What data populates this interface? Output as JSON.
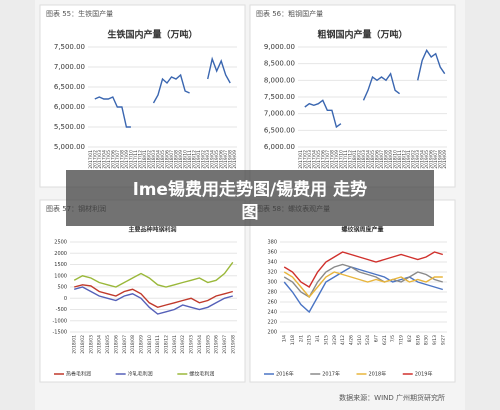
{
  "chart_data": [
    {
      "type": "line",
      "panel": "图表 55：生铁国产量",
      "title": "生铁国内产量（万吨）",
      "categories": [
        "2017/01",
        "2017/02",
        "2017/03",
        "2017/04",
        "2017/05",
        "2017/06",
        "2017/07",
        "2017/08",
        "2017/09",
        "2017/10",
        "2017/11",
        "2017/12",
        "2018/01",
        "2018/02",
        "2018/03",
        "2018/04",
        "2018/05",
        "2018/06",
        "2018/07",
        "2018/08",
        "2018/09",
        "2018/10",
        "2018/11",
        "2018/12",
        "2019/01",
        "2019/02",
        "2019/03",
        "2019/04",
        "2019/05",
        "2019/06",
        "2019/07",
        "2019/08",
        "2019/09"
      ],
      "series": [
        {
          "name": "生铁",
          "color": "#3a66b0",
          "values": [
            null,
            6200,
            6250,
            6200,
            6200,
            6250,
            6000,
            6000,
            5500,
            5500,
            null,
            null,
            null,
            null,
            6100,
            6300,
            6700,
            6600,
            6750,
            6700,
            6800,
            6400,
            6350,
            null,
            null,
            null,
            6700,
            7200,
            6900,
            7150,
            6800,
            6600,
            null
          ]
        }
      ],
      "ylim": [
        5000,
        7500
      ],
      "yticks": [
        {
          "value": 5000,
          "label": "5,000.00"
        },
        {
          "value": 5500,
          "label": "5,500.00"
        },
        {
          "value": 6000,
          "label": "6,000.00"
        },
        {
          "value": 6500,
          "label": "6,500.00"
        },
        {
          "value": 7000,
          "label": "7,000.00"
        },
        {
          "value": 7500,
          "label": "7,500.00"
        }
      ]
    },
    {
      "type": "line",
      "panel": "图表 56：粗钢国产量",
      "title": "粗钢国内产量（万吨）",
      "categories": [
        "2017/01",
        "2017/02",
        "2017/03",
        "2017/04",
        "2017/05",
        "2017/06",
        "2017/07",
        "2017/08",
        "2017/09",
        "2017/10",
        "2017/11",
        "2017/12",
        "2018/01",
        "2018/02",
        "2018/03",
        "2018/04",
        "2018/05",
        "2018/06",
        "2018/07",
        "2018/08",
        "2018/09",
        "2018/10",
        "2018/11",
        "2018/12",
        "2019/01",
        "2019/02",
        "2019/03",
        "2019/04",
        "2019/05",
        "2019/06",
        "2019/07",
        "2019/08",
        "2019/09"
      ],
      "series": [
        {
          "name": "粗钢",
          "color": "#3a66b0",
          "values": [
            null,
            7200,
            7300,
            7250,
            7300,
            7400,
            7100,
            7100,
            6600,
            6700,
            null,
            null,
            null,
            null,
            7400,
            7700,
            8100,
            8000,
            8100,
            8000,
            8200,
            7700,
            7600,
            null,
            null,
            null,
            8000,
            8600,
            8900,
            8700,
            8800,
            8400,
            8200
          ]
        }
      ],
      "ylim": [
        6000,
        9000
      ],
      "yticks": [
        {
          "value": 6000,
          "label": "6,000.00"
        },
        {
          "value": 6500,
          "label": "6,500.00"
        },
        {
          "value": 7000,
          "label": "7,000.00"
        },
        {
          "value": 7500,
          "label": "7,500.00"
        },
        {
          "value": 8000,
          "label": "8,000.00"
        },
        {
          "value": 8500,
          "label": "8,500.00"
        },
        {
          "value": 9000,
          "label": "9,000.00"
        }
      ]
    },
    {
      "type": "line",
      "panel": "图表 57：钢材利润",
      "title": "主要品种吨钢利润",
      "categories": [
        "2018/01",
        "2018/02",
        "2018/03",
        "2018/04",
        "2018/05",
        "2018/06",
        "2018/07",
        "2018/08",
        "2018/09",
        "2018/10",
        "2018/11",
        "2018/12",
        "2019/01",
        "2019/02",
        "2019/03",
        "2019/04",
        "2019/05",
        "2019/06",
        "2019/07",
        "2019/08"
      ],
      "series": [
        {
          "name": "热卷毛利润",
          "color": "#c0392b",
          "values": [
            500,
            600,
            550,
            300,
            200,
            100,
            300,
            400,
            200,
            -200,
            -400,
            -300,
            -200,
            -100,
            0,
            -200,
            -100,
            100,
            200,
            300
          ]
        },
        {
          "name": "冷轧毛利润",
          "color": "#5560b8",
          "values": [
            400,
            500,
            300,
            100,
            0,
            -100,
            100,
            200,
            0,
            -400,
            -700,
            -600,
            -500,
            -300,
            -400,
            -500,
            -400,
            -200,
            0,
            100
          ]
        },
        {
          "name": "螺纹毛利润",
          "color": "#9ab83a",
          "values": [
            800,
            1000,
            900,
            700,
            600,
            500,
            700,
            900,
            1100,
            900,
            600,
            500,
            600,
            700,
            800,
            900,
            700,
            800,
            1100,
            1600
          ]
        }
      ],
      "ylim": [
        -1500,
        2500
      ],
      "yticks": [
        -1500,
        -1000,
        -500,
        0,
        500,
        1000,
        1500,
        2000,
        2500
      ]
    },
    {
      "type": "line",
      "panel": "图表 58：螺纹表观产量",
      "title": "螺纹钢周度产量",
      "categories": [
        "1/4",
        "1/18",
        "2/1",
        "2/15",
        "3/1",
        "3/15",
        "3/29",
        "4/12",
        "4/26",
        "5/10",
        "5/24",
        "6/7",
        "6/21",
        "7/5",
        "7/19",
        "8/2",
        "8/16",
        "8/30",
        "9/13",
        "9/27"
      ],
      "series": [
        {
          "name": "2016年",
          "color": "#4a74c4",
          "values": [
            300,
            280,
            255,
            240,
            270,
            300,
            310,
            320,
            330,
            325,
            320,
            315,
            310,
            300,
            305,
            310,
            300,
            295,
            290,
            285
          ]
        },
        {
          "name": "2017年",
          "color": "#8a8a8a",
          "values": [
            310,
            300,
            280,
            270,
            300,
            320,
            330,
            335,
            330,
            320,
            315,
            310,
            300,
            305,
            300,
            310,
            320,
            315,
            305,
            300
          ]
        },
        {
          "name": "2018年",
          "color": "#e8b53c",
          "values": [
            320,
            310,
            290,
            270,
            290,
            310,
            320,
            315,
            310,
            305,
            300,
            305,
            300,
            305,
            310,
            300,
            305,
            300,
            310,
            310
          ]
        },
        {
          "name": "2019年",
          "color": "#d0302c",
          "values": [
            330,
            320,
            300,
            290,
            320,
            340,
            350,
            360,
            355,
            350,
            345,
            340,
            345,
            350,
            355,
            350,
            345,
            350,
            360,
            355
          ]
        }
      ],
      "ylim": [
        200,
        380
      ],
      "yticks": [
        200,
        220,
        240,
        260,
        280,
        300,
        320,
        340,
        360,
        380
      ]
    }
  ],
  "caption": "lme锡费用走势图/锡费用 走势图",
  "source": "数据来源：WIND 广州期货研究所"
}
